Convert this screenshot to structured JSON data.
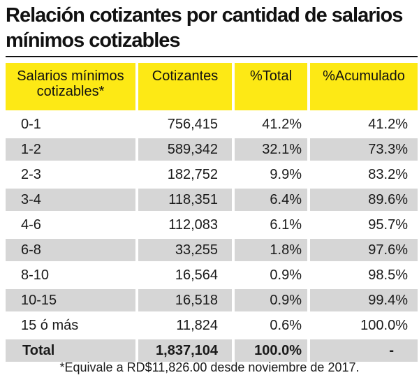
{
  "title": "Relación cotizantes por cantidad de salarios mínimos cotizables",
  "colors": {
    "header_bg": "#fde915",
    "stripe": "#d6d6d6"
  },
  "table": {
    "headers": [
      "Salarios mínimos cotizables*",
      "Cotizantes",
      "%Total",
      "%Acumulado"
    ],
    "rows": [
      {
        "range": "0-1",
        "cotizantes": "756,415",
        "total": "41.2%",
        "acumulado": "41.2%"
      },
      {
        "range": "1-2",
        "cotizantes": "589,342",
        "total": "32.1%",
        "acumulado": "73.3%"
      },
      {
        "range": "2-3",
        "cotizantes": "182,752",
        "total": "9.9%",
        "acumulado": "83.2%"
      },
      {
        "range": "3-4",
        "cotizantes": "118,351",
        "total": "6.4%",
        "acumulado": "89.6%"
      },
      {
        "range": "4-6",
        "cotizantes": "112,083",
        "total": "6.1%",
        "acumulado": "95.7%"
      },
      {
        "range": "6-8",
        "cotizantes": "33,255",
        "total": "1.8%",
        "acumulado": "97.6%"
      },
      {
        "range": "8-10",
        "cotizantes": "16,564",
        "total": "0.9%",
        "acumulado": "98.5%"
      },
      {
        "range": "10-15",
        "cotizantes": "16,518",
        "total": "0.9%",
        "acumulado": "99.4%"
      },
      {
        "range": "15 ó más",
        "cotizantes": "11,824",
        "total": "0.6%",
        "acumulado": "100.0%"
      }
    ],
    "total_row": {
      "label": "Total",
      "cotizantes": "1,837,104",
      "total": "100.0%",
      "acumulado": "-"
    }
  },
  "footnote": "*Equivale a RD$11,826.00 desde noviembre de 2017."
}
